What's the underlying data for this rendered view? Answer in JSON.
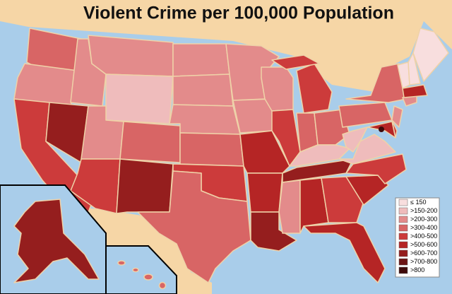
{
  "title": "Violent Crime per 100,000 Population",
  "legend": [
    {
      "label": "≤ 150",
      "color": "#f8dede"
    },
    {
      "label": ">150-200",
      "color": "#efbcbc"
    },
    {
      "label": ">200-300",
      "color": "#e38b8b"
    },
    {
      "label": ">300-400",
      "color": "#d86565"
    },
    {
      "label": ">400-500",
      "color": "#cc3b3b"
    },
    {
      "label": ">500-600",
      "color": "#b52525"
    },
    {
      "label": ">600-700",
      "color": "#951e1e"
    },
    {
      "label": ">700-800",
      "color": "#6c1414"
    },
    {
      "label": ">800",
      "color": "#3e0a0a"
    }
  ]
}
